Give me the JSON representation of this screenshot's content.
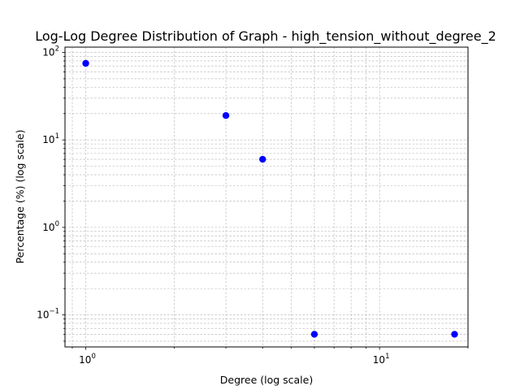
{
  "chart_data": {
    "type": "scatter",
    "title": "Log-Log Degree Distribution of Graph - high_tension_without_degree_2",
    "xlabel": "Degree (log scale)",
    "ylabel": "Percentage (%) (log scale)",
    "xscale": "log",
    "yscale": "log",
    "xlim": [
      0.85,
      20
    ],
    "ylim": [
      0.043,
      115
    ],
    "grid": true,
    "grid_which": "both",
    "marker_color": "#0000ff",
    "x": [
      1,
      3,
      4,
      6,
      18
    ],
    "y": [
      75,
      19,
      6,
      0.06,
      0.06
    ],
    "x_ticks": [
      {
        "value": 1,
        "base": "10",
        "exp": "0"
      },
      {
        "value": 10,
        "base": "10",
        "exp": "1"
      }
    ],
    "y_ticks": [
      {
        "value": 0.1,
        "base": "10",
        "exp": "−1"
      },
      {
        "value": 1,
        "base": "10",
        "exp": "0"
      },
      {
        "value": 10,
        "base": "10",
        "exp": "1"
      },
      {
        "value": 100,
        "base": "10",
        "exp": "2"
      }
    ]
  }
}
